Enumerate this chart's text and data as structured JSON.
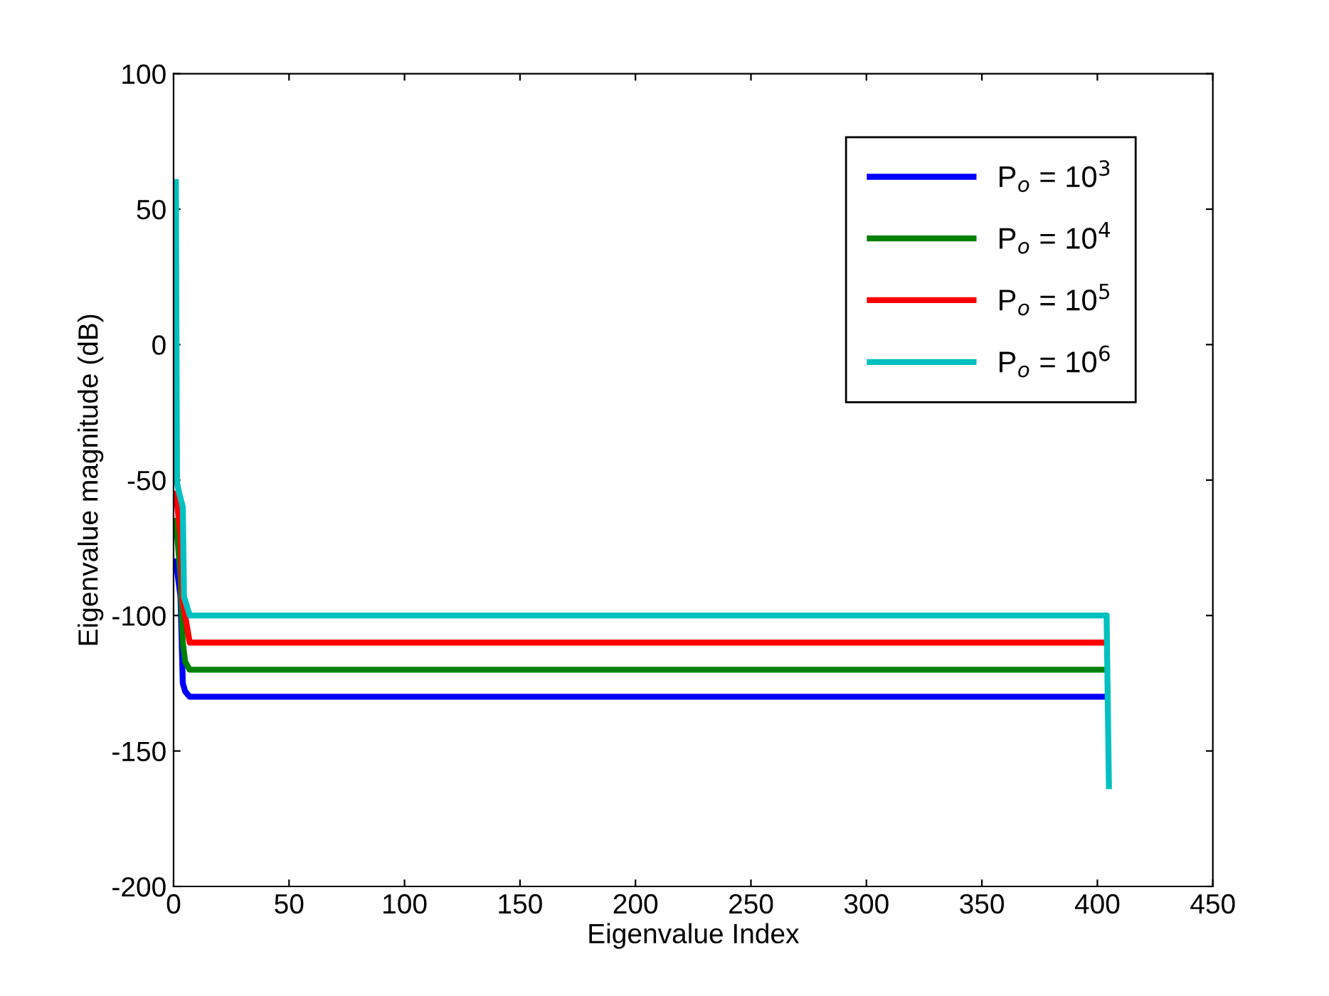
{
  "chart_data": {
    "type": "line",
    "xlabel": "Eigenvalue Index",
    "ylabel": "Eigenvalue magnitude (dB)",
    "xlim": [
      0,
      450
    ],
    "ylim": [
      -200,
      100
    ],
    "xticks": [
      0,
      50,
      100,
      150,
      200,
      250,
      300,
      350,
      400,
      450
    ],
    "yticks": [
      -200,
      -150,
      -100,
      -50,
      0,
      50,
      100
    ],
    "grid": false,
    "legend": "top right",
    "marker": "none",
    "line_style": "solid",
    "series": [
      {
        "name": "P$_{o}$ = 10$^{3}$",
        "color": "#0000ff",
        "x": [
          1,
          3,
          4,
          5,
          7,
          404
        ],
        "values": [
          -80,
          -93,
          -125,
          -128,
          -130,
          -130
        ]
      },
      {
        "name": "P$_{o}$ = 10$^{4}$",
        "color": "#008000",
        "x": [
          1,
          3,
          4,
          5,
          7,
          404
        ],
        "values": [
          -65,
          -85,
          -110,
          -117,
          -120,
          -120
        ]
      },
      {
        "name": "P$_{o}$ = 10$^{5}$",
        "color": "#ff0000",
        "x": [
          1,
          3,
          4,
          5,
          7,
          404
        ],
        "values": [
          -55,
          -70,
          -95,
          -100,
          -110,
          -110
        ]
      },
      {
        "name": "P$_{o}$ = 10$^{6}$",
        "color": "#00c0c0",
        "x": [
          1,
          1.5,
          2.5,
          4,
          4.5,
          7,
          404,
          405
        ],
        "values": [
          60,
          -51,
          -55,
          -60,
          -93,
          -100,
          -100,
          -163
        ]
      }
    ]
  }
}
